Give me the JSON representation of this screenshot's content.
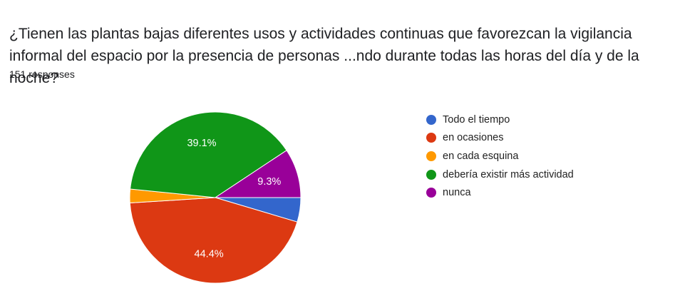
{
  "question": {
    "title": "¿Tienen las plantas bajas diferentes usos y actividades continuas que favorezcan la vigilancia informal del espacio por la presencia de personas ...ndo durante todas las horas del día y de la noche?",
    "responses": "151 responses"
  },
  "chart_data": {
    "type": "pie",
    "title": "¿Tienen las plantas bajas diferentes usos y actividades continuas que favorezcan la vigilancia informal del espacio por la presencia de personas ...ndo durante todas las horas del día y de la noche?",
    "start_angle_deg": 0,
    "direction": "clockwise",
    "legend_position": "right",
    "slices": [
      {
        "label": "Todo el tiempo",
        "value": 4.6,
        "color": "#3366cc",
        "data_label": ""
      },
      {
        "label": "en ocasiones",
        "value": 44.4,
        "color": "#dc3912",
        "data_label": "44.4%"
      },
      {
        "label": "en cada esquina",
        "value": 2.6,
        "color": "#ff9900",
        "data_label": ""
      },
      {
        "label": "debería existir más actividad",
        "value": 39.1,
        "color": "#109618",
        "data_label": "39.1%"
      },
      {
        "label": "nunca",
        "value": 9.3,
        "color": "#990099",
        "data_label": "9.3%"
      }
    ]
  }
}
